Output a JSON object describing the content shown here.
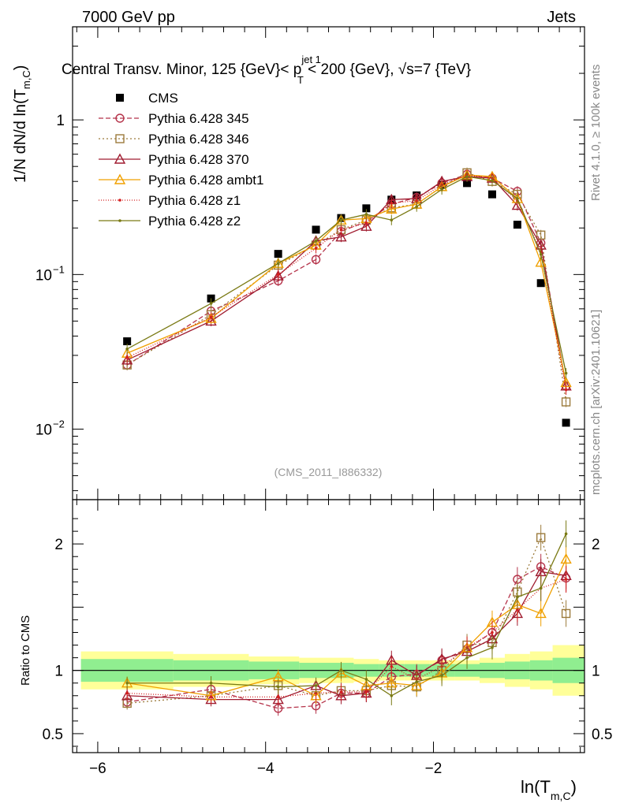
{
  "header": {
    "left": "7000 GeV pp",
    "right": "Jets",
    "title_part1": "Central Transv. Minor, 125 {GeV}< p",
    "title_sup": "jet 1",
    "title_sub": "T",
    "title_part2": " < 200 {GeV}, ",
    "title_sqrt": "√s",
    "title_part3": "=7 {TeV}"
  },
  "side_labels": {
    "rivet": "Rivet 4.1.0, ≥ 100k events",
    "mcplots": "mcplots.cern.ch [arXiv:2401.10621]"
  },
  "watermark": "(CMS_2011_I886332)",
  "axes": {
    "ylabel_main": "1/N    dN/d ln(T",
    "ylabel_main_sub": "m,C",
    "ylabel_main_close": ")",
    "ylabel_ratio": "Ratio to CMS",
    "xlabel": "ln(T",
    "xlabel_sub": "m,C",
    "xlabel_close": ")",
    "x_ticks": [
      {
        "v": -6,
        "label": "−6"
      },
      {
        "v": -4,
        "label": "−4"
      },
      {
        "v": -2,
        "label": "−2"
      }
    ],
    "y_ticks_main": [
      {
        "v": 1,
        "label": "1"
      },
      {
        "v": 0.1,
        "label": "10",
        "exp": "−1"
      },
      {
        "v": 0.01,
        "label": "10",
        "exp": "−2"
      }
    ],
    "y_ticks_ratio": [
      {
        "v": 2,
        "label": "2"
      },
      {
        "v": 1,
        "label": "1"
      },
      {
        "v": 0.5,
        "label": "0.5"
      }
    ]
  },
  "chart_data": {
    "type": "scatter",
    "title": "Central Transv. Minor, 125 {GeV}< p_T^{jet 1} < 200 {GeV}, √s=7 {TeV}",
    "xlabel": "ln(T_{m,C})",
    "ylabel": "1/N dN/d ln(T_{m,C})",
    "xlim": [
      -6.3,
      -0.2
    ],
    "ylim": [
      0.0035,
      4.0
    ],
    "yscale": "log",
    "ratio_ylim": [
      0.35,
      2.35
    ],
    "x": [
      -5.65,
      -4.65,
      -3.85,
      -3.4,
      -3.1,
      -2.8,
      -2.5,
      -2.2,
      -1.9,
      -1.6,
      -1.3,
      -1.0,
      -0.72,
      -0.42
    ],
    "band_edges": [
      -6.2,
      -5.1,
      -4.2,
      -3.6,
      -3.25,
      -2.95,
      -2.65,
      -2.35,
      -2.05,
      -1.75,
      -1.45,
      -1.15,
      -0.85,
      -0.58,
      -0.2
    ],
    "band_inner": [
      0.09,
      0.08,
      0.07,
      0.06,
      0.06,
      0.05,
      0.05,
      0.05,
      0.05,
      0.05,
      0.06,
      0.07,
      0.08,
      0.1
    ],
    "band_outer": [
      0.15,
      0.13,
      0.11,
      0.1,
      0.1,
      0.09,
      0.08,
      0.08,
      0.08,
      0.08,
      0.1,
      0.13,
      0.15,
      0.2
    ],
    "series": [
      {
        "name": "CMS",
        "color": "#000000",
        "marker": "square-filled",
        "dash": "none",
        "values": [
          0.037,
          0.07,
          0.136,
          0.195,
          0.232,
          0.268,
          0.305,
          0.325,
          0.38,
          0.39,
          0.33,
          0.21,
          0.088,
          0.011
        ]
      },
      {
        "name": "Pythia 6.428 345",
        "color": "#b5334a",
        "marker": "circle-open",
        "dash": "6,3",
        "values": [
          0.026,
          0.058,
          0.091,
          0.125,
          0.19,
          0.22,
          0.285,
          0.315,
          0.39,
          0.445,
          0.42,
          0.345,
          0.16,
          0.019
        ],
        "ratio": [
          0.75,
          0.85,
          0.7,
          0.72,
          0.82,
          0.82,
          0.95,
          0.97,
          1.08,
          1.17,
          1.3,
          1.72,
          1.82,
          1.73
        ]
      },
      {
        "name": "Pythia 6.428 346",
        "color": "#9c7b3c",
        "marker": "square-open",
        "dash": "2,3",
        "values": [
          0.026,
          0.055,
          0.115,
          0.155,
          0.195,
          0.225,
          0.27,
          0.285,
          0.37,
          0.455,
          0.4,
          0.33,
          0.18,
          0.015
        ],
        "ratio": [
          0.74,
          0.8,
          0.88,
          0.8,
          0.84,
          0.84,
          0.88,
          0.87,
          1.0,
          1.2,
          1.22,
          1.62,
          2.05,
          1.45
        ]
      },
      {
        "name": "Pythia 6.428 370",
        "color": "#a01c30",
        "marker": "triangle-open",
        "dash": "none",
        "values": [
          0.028,
          0.05,
          0.098,
          0.165,
          0.175,
          0.205,
          0.305,
          0.31,
          0.4,
          0.43,
          0.42,
          0.28,
          0.155,
          0.019
        ],
        "ratio": [
          0.8,
          0.77,
          0.77,
          0.88,
          0.8,
          0.82,
          1.08,
          0.96,
          1.09,
          1.15,
          1.25,
          1.45,
          1.78,
          1.75
        ]
      },
      {
        "name": "Pythia 6.428 ambt1",
        "color": "#f0a000",
        "marker": "triangle-open",
        "dash": "none",
        "values": [
          0.031,
          0.052,
          0.118,
          0.155,
          0.225,
          0.23,
          0.265,
          0.285,
          0.37,
          0.44,
          0.43,
          0.31,
          0.12,
          0.02
        ],
        "ratio": [
          0.9,
          0.8,
          0.95,
          0.8,
          0.98,
          0.88,
          0.9,
          0.88,
          0.98,
          1.18,
          1.38,
          1.52,
          1.45,
          1.88
        ]
      },
      {
        "name": "Pythia 6.428 z1",
        "color": "#d42020",
        "marker": "dot",
        "dash": "1,2",
        "values": [
          0.029,
          0.053,
          0.1,
          0.148,
          0.195,
          0.215,
          0.29,
          0.3,
          0.38,
          0.44,
          0.42,
          0.3,
          0.14,
          0.018
        ],
        "ratio": [
          0.82,
          0.79,
          0.79,
          0.82,
          0.83,
          0.83,
          1.03,
          0.93,
          1.03,
          1.18,
          1.3,
          1.48,
          1.65,
          1.72
        ]
      },
      {
        "name": "Pythia 6.428 z2",
        "color": "#7a7a14",
        "marker": "dot",
        "dash": "none",
        "values": [
          0.033,
          0.065,
          0.118,
          0.165,
          0.225,
          0.245,
          0.225,
          0.275,
          0.355,
          0.43,
          0.405,
          0.31,
          0.135,
          0.023
        ],
        "ratio": [
          0.9,
          0.9,
          0.87,
          0.88,
          1.0,
          0.93,
          0.8,
          0.91,
          0.96,
          1.1,
          1.18,
          1.58,
          1.65,
          2.08
        ]
      }
    ]
  }
}
